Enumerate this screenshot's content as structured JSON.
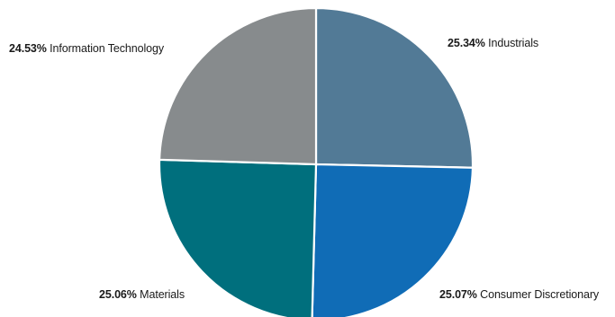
{
  "chart_data": {
    "type": "pie",
    "start_angle_deg": 0,
    "direction": "clockwise",
    "slice_border_color": "#ffffff",
    "slices": [
      {
        "label": "Industrials",
        "value": 25.34,
        "value_label": "25.34%",
        "color": "#527a96"
      },
      {
        "label": "Consumer Discretionary",
        "value": 25.07,
        "value_label": "25.07%",
        "color": "#106cb6"
      },
      {
        "label": "Materials",
        "value": 25.06,
        "value_label": "25.06%",
        "color": "#006f7d"
      },
      {
        "label": "Information Technology",
        "value": 24.53,
        "value_label": "24.53%",
        "color": "#878b8d"
      }
    ]
  }
}
